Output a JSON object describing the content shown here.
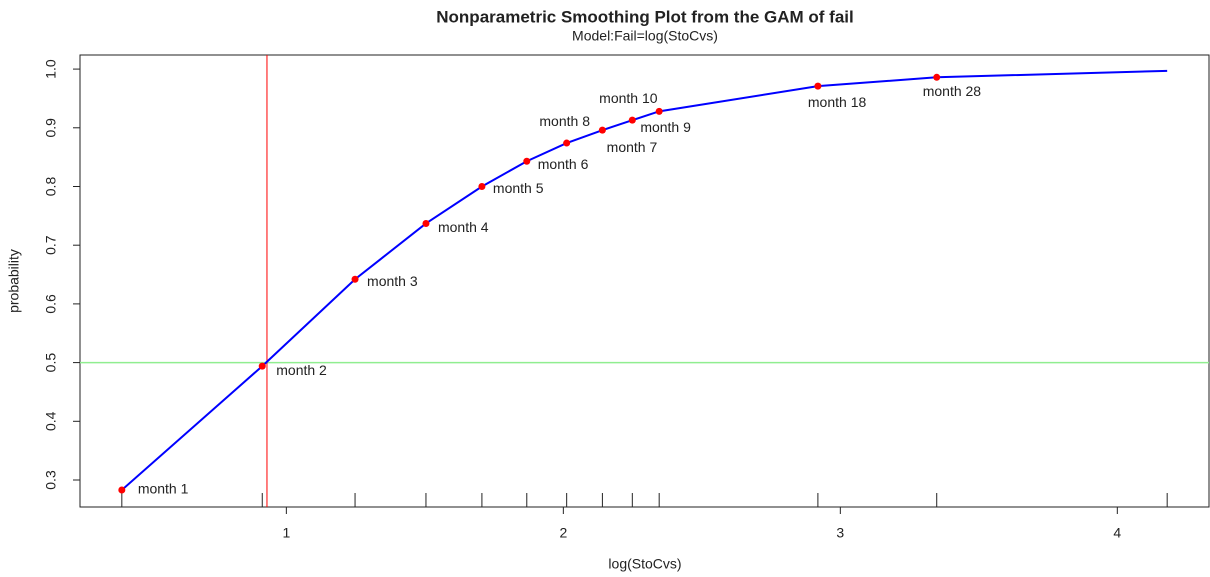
{
  "chart_data": {
    "type": "line",
    "title": "Nonparametric Smoothing Plot from the GAM of fail",
    "subtitle": "Model:Fail=log(StoCvs)",
    "x_label": "log(StoCvs)",
    "y_label": "probability",
    "xlim": [
      0.255,
      4.331
    ],
    "ylim": [
      0.254,
      1.024
    ],
    "xticks": [
      1,
      2,
      3,
      4
    ],
    "yticks": [
      0.3,
      0.4,
      0.5,
      0.6,
      0.7,
      0.8,
      0.9,
      {
        "value": 1,
        "label": "1.0"
      }
    ],
    "curve": {
      "color": "#0000ff",
      "x": [
        0.406,
        0.913,
        1.248,
        1.504,
        1.706,
        1.868,
        2.012,
        2.141,
        2.249,
        2.346,
        2.919,
        3.348,
        4.18
      ],
      "values": [
        0.283,
        0.494,
        0.642,
        0.737,
        0.8,
        0.843,
        0.874,
        0.896,
        0.913,
        0.928,
        0.971,
        0.986,
        0.997
      ]
    },
    "points": {
      "color": "#ff0000",
      "labels": [
        "month 1",
        "month 2",
        "month 3",
        "month 4",
        "month 5",
        "month 6",
        "month 7",
        "month 8",
        "month 9",
        "month 10",
        "month 18",
        "month 28"
      ],
      "x": [
        0.406,
        0.913,
        1.248,
        1.504,
        1.706,
        1.868,
        2.012,
        2.141,
        2.249,
        2.346,
        2.919,
        3.348
      ],
      "values": [
        0.283,
        0.494,
        0.642,
        0.737,
        0.8,
        0.843,
        0.874,
        0.896,
        0.913,
        0.928,
        0.971,
        0.986
      ]
    },
    "vline": {
      "value": 0.93,
      "color": "#ff0000"
    },
    "hline": {
      "value": 0.5,
      "color": "#90ee90"
    }
  }
}
